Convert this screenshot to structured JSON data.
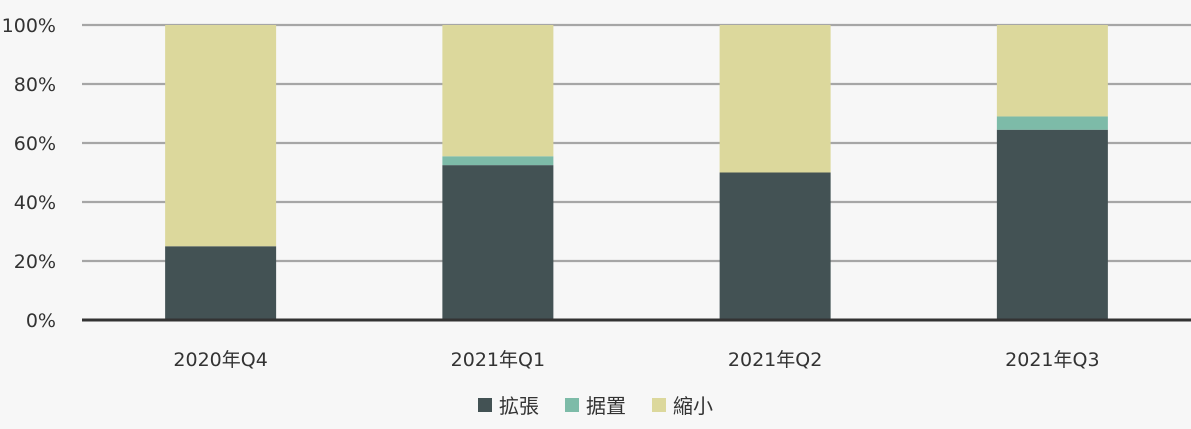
{
  "chart_data": {
    "type": "bar",
    "stacked": true,
    "categories": [
      "2020年Q4",
      "2021年Q1",
      "2021年Q2",
      "2021年Q3"
    ],
    "series": [
      {
        "name": "拡張",
        "values": [
          25,
          52.5,
          50,
          64.5
        ],
        "color": "#435254"
      },
      {
        "name": "据置",
        "values": [
          0,
          3,
          0,
          4.5
        ],
        "color": "#7dbba8"
      },
      {
        "name": "縮小",
        "values": [
          75,
          44.5,
          50,
          31
        ],
        "color": "#dcd89c"
      }
    ],
    "ylim": [
      0,
      100
    ],
    "yticks": [
      "0%",
      "20%",
      "40%",
      "60%",
      "80%",
      "100%"
    ],
    "grid": true,
    "legend_position": "bottom"
  }
}
